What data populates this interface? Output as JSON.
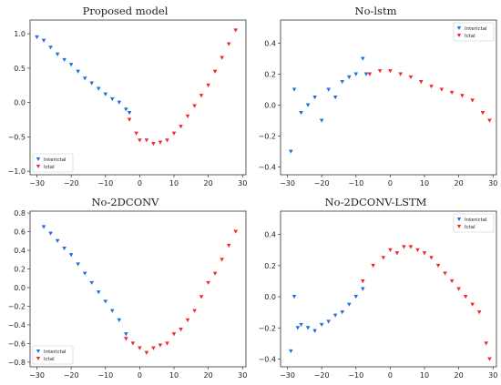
{
  "legend": {
    "series": [
      "Interictal",
      "Ictal"
    ]
  },
  "colors": {
    "interictal": "#1f6fe0",
    "ictal": "#ee2a2a"
  },
  "chart_data": [
    {
      "type": "scatter",
      "title": "Proposed model",
      "xlim": [
        -32,
        31
      ],
      "ylim": [
        -1.05,
        1.2
      ],
      "xticks": [
        -30,
        -20,
        -10,
        0,
        10,
        20,
        30
      ],
      "yticks": [
        1.0,
        0.5,
        0.0,
        -0.5,
        -1.0
      ],
      "ytick_labels": [
        "1.0",
        "0.5",
        "0.0",
        "-0.5",
        "-1.0"
      ],
      "legend_position": "bottom-left",
      "series": [
        {
          "name": "Interictal",
          "marker": "v",
          "x": [
            -30,
            -28,
            -26,
            -24,
            -22,
            -20,
            -18,
            -16,
            -14,
            -12,
            -10,
            -8,
            -6,
            -4,
            -3
          ],
          "y": [
            0.95,
            0.9,
            0.8,
            0.7,
            0.62,
            0.55,
            0.45,
            0.35,
            0.28,
            0.2,
            0.12,
            0.05,
            0.0,
            -0.1,
            -0.15
          ]
        },
        {
          "name": "Ictal",
          "marker": "v",
          "x": [
            -3,
            -1,
            0,
            2,
            4,
            6,
            8,
            10,
            12,
            14,
            16,
            18,
            20,
            22,
            24,
            26,
            28
          ],
          "y": [
            -0.25,
            -0.45,
            -0.55,
            -0.55,
            -0.6,
            -0.58,
            -0.55,
            -0.45,
            -0.35,
            -0.2,
            -0.05,
            0.1,
            0.25,
            0.45,
            0.65,
            0.85,
            1.05
          ]
        }
      ]
    },
    {
      "type": "scatter",
      "title": "No-lstm",
      "xlim": [
        -32,
        31
      ],
      "ylim": [
        -0.45,
        0.55
      ],
      "xticks": [
        -30,
        -20,
        -10,
        0,
        10,
        20,
        30
      ],
      "yticks": [
        0.4,
        0.2,
        0.0,
        -0.2,
        -0.4
      ],
      "ytick_labels": [
        "0.4",
        "0.2",
        "0.0",
        "-0.2",
        "-0.4"
      ],
      "legend_position": "top-right",
      "series": [
        {
          "name": "Interictal",
          "marker": "v",
          "x": [
            -29,
            -28,
            -26,
            -24,
            -22,
            -20,
            -18,
            -16,
            -14,
            -12,
            -10,
            -8,
            -7
          ],
          "y": [
            -0.3,
            0.1,
            -0.05,
            0.0,
            0.05,
            -0.1,
            0.1,
            0.05,
            0.15,
            0.18,
            0.2,
            0.3,
            0.2
          ]
        },
        {
          "name": "Ictal",
          "marker": "v",
          "x": [
            -6,
            -3,
            0,
            3,
            6,
            9,
            12,
            15,
            18,
            21,
            24,
            27,
            29
          ],
          "y": [
            0.2,
            0.22,
            0.22,
            0.2,
            0.18,
            0.15,
            0.12,
            0.1,
            0.08,
            0.06,
            0.03,
            -0.05,
            -0.1
          ]
        }
      ]
    },
    {
      "type": "scatter",
      "title": "No-2DCONV",
      "xlim": [
        -32,
        31
      ],
      "ylim": [
        -0.85,
        0.82
      ],
      "xticks": [
        -30,
        -20,
        -10,
        0,
        10,
        20,
        30
      ],
      "yticks": [
        0.8,
        0.6,
        0.4,
        0.2,
        0.0,
        -0.2,
        -0.4,
        -0.6,
        -0.8
      ],
      "ytick_labels": [
        "0.8",
        "0.6",
        "0.4",
        "0.2",
        "0.0",
        "-0.2",
        "-0.4",
        "-0.6",
        "-0.8"
      ],
      "legend_position": "bottom-left",
      "series": [
        {
          "name": "Interictal",
          "marker": "v",
          "x": [
            -28,
            -26,
            -24,
            -22,
            -20,
            -18,
            -16,
            -14,
            -12,
            -10,
            -8,
            -6,
            -4
          ],
          "y": [
            0.65,
            0.58,
            0.5,
            0.42,
            0.35,
            0.25,
            0.15,
            0.05,
            -0.05,
            -0.15,
            -0.25,
            -0.35,
            -0.5
          ]
        },
        {
          "name": "Ictal",
          "marker": "v",
          "x": [
            -4,
            -2,
            0,
            2,
            4,
            6,
            8,
            10,
            12,
            14,
            16,
            18,
            20,
            22,
            24,
            26,
            28
          ],
          "y": [
            -0.55,
            -0.6,
            -0.65,
            -0.7,
            -0.65,
            -0.62,
            -0.6,
            -0.5,
            -0.45,
            -0.35,
            -0.25,
            -0.1,
            0.05,
            0.15,
            0.3,
            0.45,
            0.6
          ]
        }
      ]
    },
    {
      "type": "scatter",
      "title": "No-2DCONV-LSTM",
      "xlim": [
        -32,
        31
      ],
      "ylim": [
        -0.45,
        0.55
      ],
      "xticks": [
        -30,
        -20,
        -10,
        0,
        10,
        20,
        30
      ],
      "yticks": [
        0.4,
        0.2,
        0.0,
        -0.2,
        -0.4
      ],
      "ytick_labels": [
        "0.4",
        "0.2",
        "0.0",
        "-0.2",
        "-0.4"
      ],
      "legend_position": "top-right",
      "series": [
        {
          "name": "Interictal",
          "marker": "v",
          "x": [
            -29,
            -28,
            -27,
            -26,
            -24,
            -22,
            -20,
            -18,
            -16,
            -14,
            -12,
            -10,
            -8
          ],
          "y": [
            -0.35,
            0.0,
            -0.2,
            -0.18,
            -0.2,
            -0.22,
            -0.18,
            -0.16,
            -0.12,
            -0.1,
            -0.05,
            0.0,
            0.05
          ]
        },
        {
          "name": "Ictal",
          "marker": "v",
          "x": [
            -8,
            -5,
            -2,
            0,
            2,
            4,
            6,
            8,
            10,
            12,
            14,
            16,
            18,
            20,
            22,
            24,
            26,
            28,
            29
          ],
          "y": [
            0.1,
            0.2,
            0.25,
            0.3,
            0.28,
            0.32,
            0.32,
            0.3,
            0.28,
            0.25,
            0.2,
            0.15,
            0.1,
            0.05,
            0.0,
            -0.05,
            -0.1,
            -0.3,
            -0.4
          ]
        }
      ]
    }
  ]
}
